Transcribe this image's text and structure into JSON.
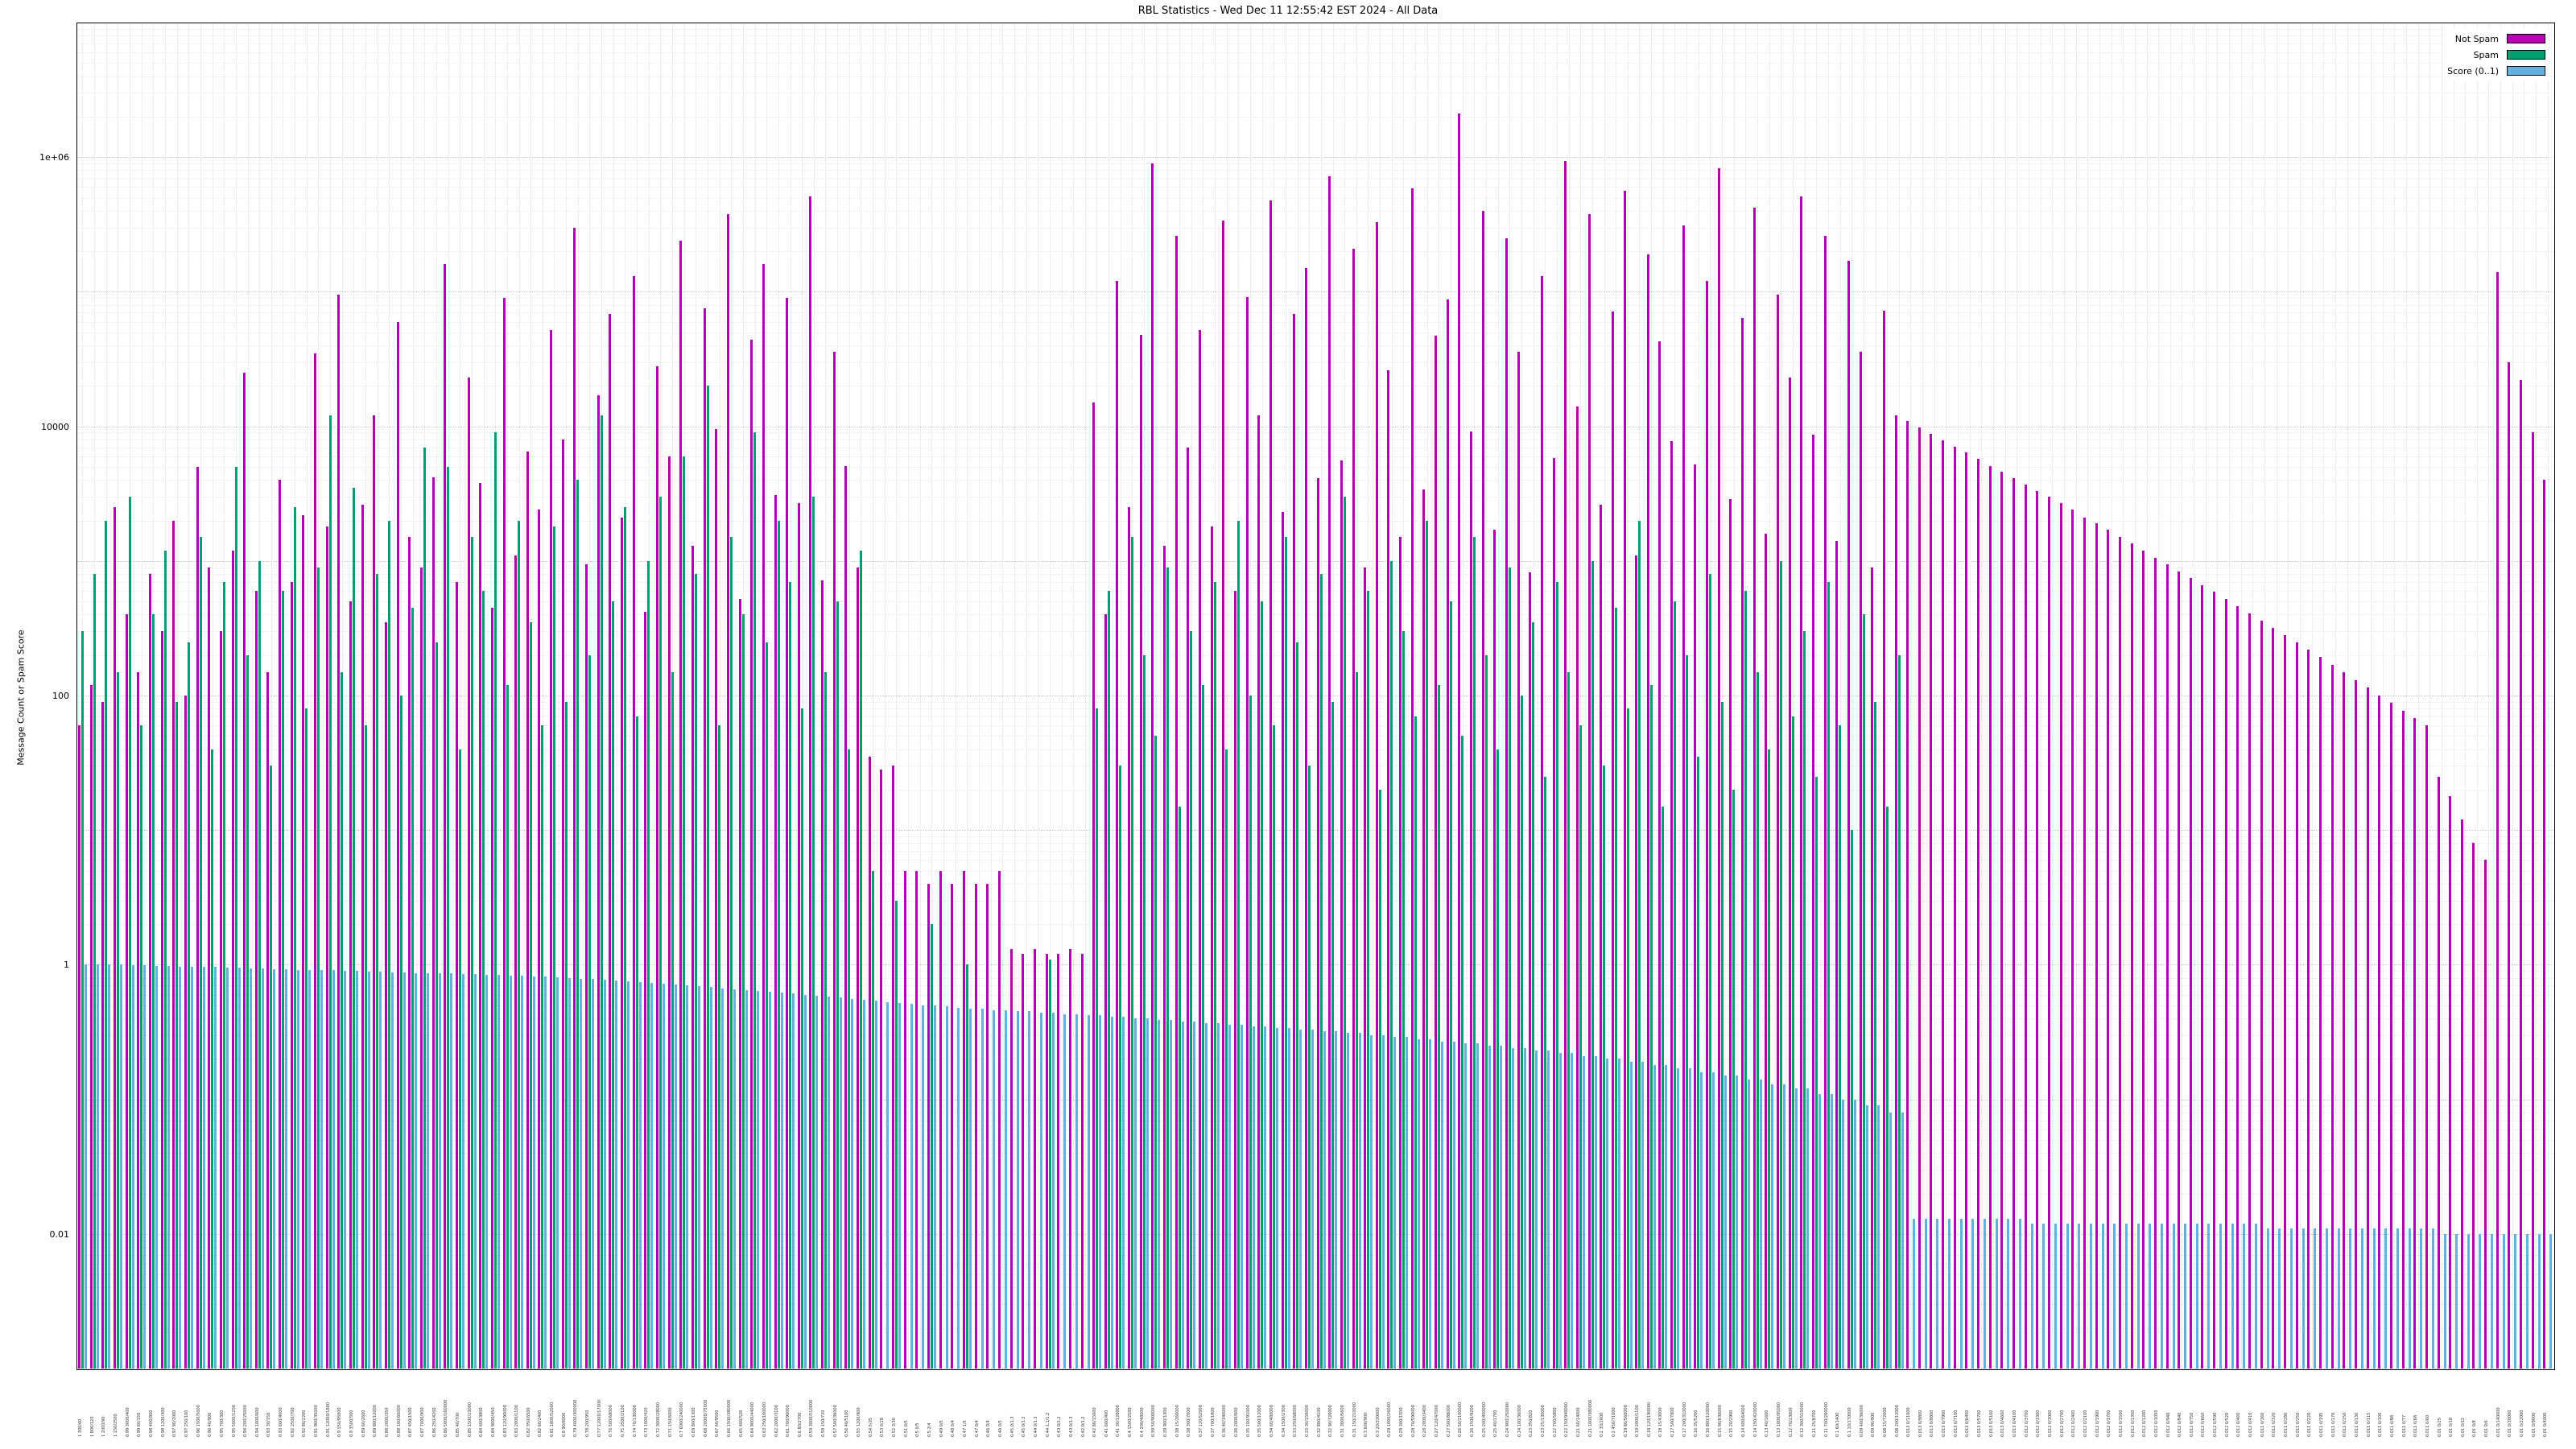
{
  "title": "RBL Statistics - Wed Dec 11 12:55:42 EST 2024 - All Data",
  "y_axis": {
    "label": "Message Count or Spam Score",
    "scale": "log",
    "ticks": [
      {
        "value": 1000000,
        "label": "1e+06"
      },
      {
        "value": 10000,
        "label": "10000"
      },
      {
        "value": 100,
        "label": "100"
      },
      {
        "value": 1,
        "label": "1"
      },
      {
        "value": 0.01,
        "label": "0.01"
      }
    ]
  },
  "x_axis": {
    "labels_illegible": true,
    "note": "dense per-RBL tick labels, unreadable at this resolution"
  },
  "legend": {
    "position": "top-right",
    "items": [
      {
        "label": "Not Spam",
        "color": "#b400b4"
      },
      {
        "label": "Spam",
        "color": "#009e73"
      },
      {
        "label": "Score (0..1)",
        "color": "#5fb2e0"
      }
    ]
  },
  "chart_data": {
    "type": "bar",
    "subtype": "impulses",
    "yscale": "log",
    "ylim": [
      0.001,
      10000000
    ],
    "grid": true,
    "series": [
      {
        "name": "Not Spam",
        "color": "#b400b4",
        "values": [
          60,
          120,
          90,
          2500,
          400,
          150,
          800,
          300,
          2000,
          100,
          5000,
          900,
          300,
          1200,
          25000,
          600,
          150,
          4000,
          700,
          2200,
          35000,
          1800,
          95000,
          500,
          2600,
          12000,
          350,
          60000,
          1500,
          900,
          4200,
          160000,
          700,
          23000,
          3800,
          450,
          90000,
          1100,
          6500,
          2400,
          52000,
          8000,
          300000,
          950,
          17000,
          68000,
          2100,
          130000,
          420,
          28000,
          6000,
          240000,
          1300,
          75000,
          9500,
          380000,
          520,
          44000,
          160000,
          3100,
          90000,
          2700,
          510000,
          720,
          36000,
          5100,
          900,
          35,
          28,
          30,
          5,
          5,
          4,
          5,
          4,
          5,
          4,
          4,
          5,
          1.3,
          1.2,
          1.3,
          1.2,
          1.2,
          1.3,
          1.2,
          15000,
          400,
          120000,
          2500,
          48000,
          900000,
          1300,
          260000,
          7000,
          52000,
          1800,
          340000,
          600,
          91000,
          12000,
          480000,
          2300,
          68000,
          150000,
          4100,
          720000,
          5600,
          210000,
          900,
          330000,
          26000,
          1500,
          590000,
          3400,
          47000,
          88000,
          2100000,
          9200,
          400000,
          1700,
          250000,
          36000,
          820,
          130000,
          5800,
          940000,
          14000,
          380000,
          2600,
          71000,
          560000,
          1100,
          190000,
          43000,
          7800,
          310000,
          5200,
          120000,
          830000,
          2900,
          64000,
          420000,
          1600,
          95000,
          23000,
          510000,
          8700,
          260000,
          1400,
          170000,
          36000,
          900,
          72000,
          12000,
          11000,
          9800,
          8800,
          7900,
          7100,
          6400,
          5700,
          5100,
          4600,
          4100,
          3700,
          3300,
          3000,
          2700,
          2400,
          2100,
          1900,
          1700,
          1500,
          1350,
          1200,
          1050,
          940,
          840,
          750,
          660,
          590,
          520,
          460,
          410,
          360,
          320,
          280,
          250,
          220,
          195,
          170,
          150,
          130,
          115,
          100,
          88,
          77,
          68,
          60,
          25,
          18,
          12,
          8,
          6,
          140000,
          30000,
          22000,
          9000,
          4000
        ]
      },
      {
        "name": "Spam",
        "color": "#009e73",
        "values": [
          300,
          800,
          2000,
          150,
          3000,
          60,
          400,
          1200,
          90,
          250,
          1500,
          40,
          700,
          5000,
          200,
          1000,
          30,
          600,
          2500,
          80,
          900,
          12000,
          150,
          3500,
          60,
          800,
          2000,
          100,
          450,
          7000,
          250,
          5000,
          40,
          1500,
          600,
          9000,
          120,
          2000,
          350,
          60,
          1800,
          90,
          4000,
          200,
          12000,
          500,
          2500,
          70,
          1000,
          3000,
          150,
          6000,
          800,
          20000,
          60,
          1500,
          400,
          9000,
          250,
          2000,
          700,
          80,
          3000,
          150,
          500,
          40,
          1200,
          5,
          0,
          3,
          0,
          0,
          2,
          0,
          0,
          1,
          0,
          0,
          0,
          0,
          0,
          0,
          1.1,
          0,
          0,
          0,
          80,
          600,
          30,
          1500,
          200,
          50,
          900,
          15,
          300,
          120,
          700,
          40,
          2000,
          100,
          500,
          60,
          1500,
          250,
          30,
          800,
          90,
          3000,
          150,
          600,
          20,
          1000,
          300,
          70,
          2000,
          120,
          500,
          50,
          1500,
          200,
          40,
          900,
          100,
          350,
          25,
          700,
          150,
          60,
          1000,
          30,
          450,
          80,
          2000,
          120,
          15,
          500,
          200,
          35,
          800,
          90,
          20,
          600,
          150,
          40,
          1000,
          70,
          300,
          25,
          700,
          60,
          10,
          400,
          90,
          15,
          200,
          0,
          0,
          0,
          0,
          0,
          0,
          0,
          0,
          0,
          0,
          0,
          0,
          0,
          0,
          0,
          0,
          0,
          0,
          0,
          0,
          0,
          0,
          0,
          0,
          0,
          0,
          0,
          0,
          0,
          0,
          0,
          0,
          0,
          0,
          0,
          0,
          0,
          0,
          0,
          0,
          0,
          0,
          0,
          0,
          0,
          0,
          0,
          0,
          0,
          0,
          0,
          0,
          0,
          0,
          0
        ]
      },
      {
        "name": "Score (0..1)",
        "color": "#5fb2e0",
        "values": [
          1,
          1,
          1,
          1,
          0.99,
          0.99,
          0.98,
          0.98,
          0.97,
          0.97,
          0.96,
          0.96,
          0.95,
          0.95,
          0.94,
          0.94,
          0.93,
          0.93,
          0.92,
          0.92,
          0.91,
          0.91,
          0.9,
          0.9,
          0.89,
          0.89,
          0.88,
          0.88,
          0.87,
          0.87,
          0.86,
          0.86,
          0.85,
          0.85,
          0.84,
          0.84,
          0.83,
          0.83,
          0.82,
          0.82,
          0.81,
          0.8,
          0.79,
          0.78,
          0.77,
          0.76,
          0.75,
          0.74,
          0.73,
          0.72,
          0.71,
          0.7,
          0.69,
          0.68,
          0.67,
          0.66,
          0.65,
          0.64,
          0.63,
          0.62,
          0.61,
          0.6,
          0.59,
          0.58,
          0.57,
          0.56,
          0.55,
          0.54,
          0.53,
          0.52,
          0.51,
          0.5,
          0.5,
          0.49,
          0.48,
          0.47,
          0.47,
          0.46,
          0.46,
          0.45,
          0.45,
          0.44,
          0.44,
          0.43,
          0.43,
          0.42,
          0.42,
          0.41,
          0.41,
          0.4,
          0.4,
          0.39,
          0.39,
          0.38,
          0.38,
          0.37,
          0.37,
          0.36,
          0.36,
          0.35,
          0.35,
          0.34,
          0.34,
          0.33,
          0.33,
          0.32,
          0.32,
          0.31,
          0.31,
          0.3,
          0.3,
          0.29,
          0.29,
          0.28,
          0.28,
          0.27,
          0.27,
          0.26,
          0.26,
          0.25,
          0.25,
          0.24,
          0.24,
          0.23,
          0.23,
          0.22,
          0.22,
          0.21,
          0.21,
          0.2,
          0.2,
          0.19,
          0.19,
          0.18,
          0.18,
          0.17,
          0.17,
          0.16,
          0.16,
          0.15,
          0.15,
          0.14,
          0.14,
          0.13,
          0.13,
          0.12,
          0.12,
          0.11,
          0.11,
          0.1,
          0.1,
          0.09,
          0.09,
          0.08,
          0.08,
          0.013,
          0.013,
          0.013,
          0.013,
          0.013,
          0.013,
          0.013,
          0.013,
          0.013,
          0.013,
          0.012,
          0.012,
          0.012,
          0.012,
          0.012,
          0.012,
          0.012,
          0.012,
          0.012,
          0.012,
          0.012,
          0.012,
          0.012,
          0.012,
          0.012,
          0.012,
          0.012,
          0.012,
          0.012,
          0.012,
          0.011,
          0.011,
          0.011,
          0.011,
          0.011,
          0.011,
          0.011,
          0.011,
          0.011,
          0.011,
          0.011,
          0.011,
          0.011,
          0.011,
          0.011,
          0.01,
          0.01,
          0.01,
          0.01,
          0.01,
          0.01,
          0.01,
          0.01,
          0.01,
          0.01
        ]
      }
    ]
  }
}
